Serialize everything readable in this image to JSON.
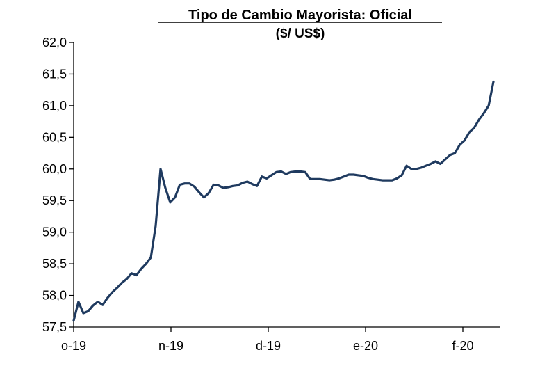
{
  "chart_data": {
    "type": "line",
    "title": "Tipo de Cambio Mayorista: Oficial",
    "subtitle": "($/ US$)",
    "xlabel": "",
    "ylabel": "",
    "ylim": [
      57.5,
      62.0
    ],
    "y_ticks": [
      "62,0",
      "61,5",
      "61,0",
      "60,5",
      "60,0",
      "59,5",
      "59,0",
      "58,5",
      "58,0",
      "57,5"
    ],
    "x_ticks": [
      "o-19",
      "n-19",
      "d-19",
      "e-20",
      "f-20"
    ],
    "grid": false,
    "legend": "none",
    "colors": {
      "line": "#1f3a5f",
      "axis": "#000000"
    },
    "series": [
      {
        "values": [
          57.6,
          57.9,
          57.72,
          57.75,
          57.84,
          57.9,
          57.85,
          57.96,
          58.05,
          58.12,
          58.2,
          58.26,
          58.35,
          58.32,
          58.42,
          58.5,
          58.6,
          59.1,
          60.0,
          59.7,
          59.47,
          59.55,
          59.75,
          59.77,
          59.77,
          59.72,
          59.63,
          59.55,
          59.62,
          59.75,
          59.74,
          59.7,
          59.71,
          59.73,
          59.74,
          59.78,
          59.8,
          59.76,
          59.73,
          59.88,
          59.85,
          59.9,
          59.95,
          59.96,
          59.92,
          59.95,
          59.96,
          59.96,
          59.95,
          59.84,
          59.84,
          59.84,
          59.83,
          59.82,
          59.83,
          59.85,
          59.88,
          59.91,
          59.91,
          59.9,
          59.89,
          59.86,
          59.84,
          59.83,
          59.82,
          59.82,
          59.82,
          59.85,
          59.9,
          60.05,
          60.0,
          60.0,
          60.02,
          60.05,
          60.08,
          60.12,
          60.08,
          60.15,
          60.22,
          60.25,
          60.38,
          60.45,
          60.58,
          60.65,
          60.78,
          60.88,
          61.0,
          61.38
        ]
      }
    ]
  }
}
